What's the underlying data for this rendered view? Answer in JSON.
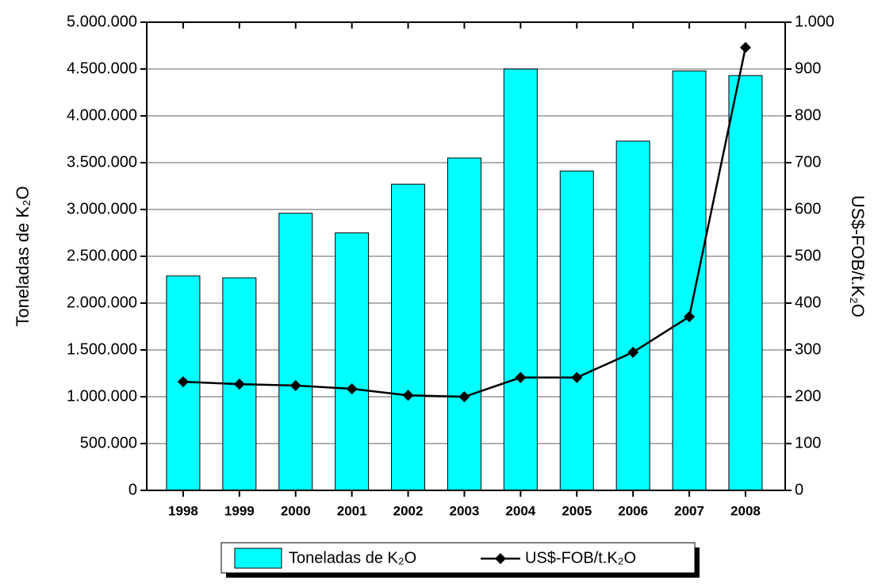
{
  "chart_data": {
    "type": "bar",
    "categories": [
      "1998",
      "1999",
      "2000",
      "2001",
      "2002",
      "2003",
      "2004",
      "2005",
      "2006",
      "2007",
      "2008"
    ],
    "series": [
      {
        "name": "Toneladas de K₂O",
        "type": "bar",
        "color": "#00ffff",
        "values": [
          2290000,
          2270000,
          2960000,
          2750000,
          3270000,
          3550000,
          4500000,
          3410000,
          3730000,
          4480000,
          4430000
        ]
      },
      {
        "name": "US$-FOB/t.K₂O",
        "type": "line",
        "axis": "y2",
        "color": "#000000",
        "values": [
          232,
          227,
          224,
          217,
          203,
          200,
          241,
          241,
          295,
          371,
          946
        ]
      }
    ],
    "ylabel": "Toneladas de K₂O",
    "y2label": "US$-FOB/t.K₂O",
    "ylim": [
      0,
      5000000
    ],
    "yticks": [
      0,
      {
        "value": 500000,
        "label": "500.000"
      },
      {
        "value": 1000000,
        "label": "1.000.000"
      },
      {
        "value": 1500000,
        "label": "1.500.000"
      },
      {
        "value": 2000000,
        "label": "2.000.000"
      },
      {
        "value": 2500000,
        "label": "2.500.000"
      },
      {
        "value": 3000000,
        "label": "3.000.000"
      },
      {
        "value": 3500000,
        "label": "3.500.000"
      },
      {
        "value": 4000000,
        "label": "4.000.000"
      },
      {
        "value": 4500000,
        "label": "4.500.000"
      },
      {
        "value": 5000000,
        "label": "5.000.000"
      }
    ],
    "y2lim": [
      0,
      1000
    ],
    "y2ticks": [
      0,
      100,
      200,
      300,
      400,
      500,
      600,
      700,
      800,
      900,
      {
        "value": 1000,
        "label": "1.000"
      }
    ],
    "grid": true
  }
}
